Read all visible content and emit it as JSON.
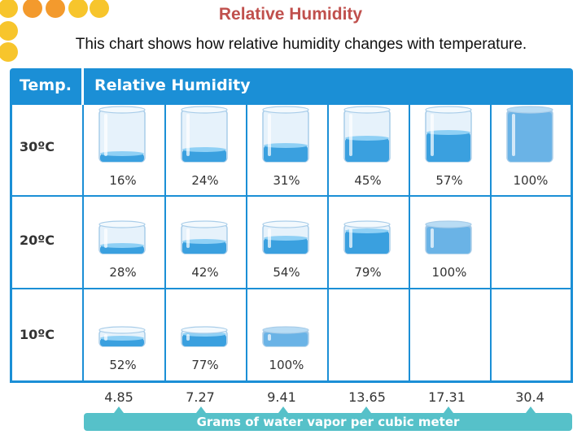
{
  "title": "Relative Humidity",
  "subtitle": "This chart shows how relative humidity changes with temperature.",
  "table": {
    "header_temp": "Temp.",
    "header_rh": "Relative Humidity",
    "rows": [
      {
        "temp": "30ºC",
        "cells": [
          {
            "label": "16%",
            "fill": 0.16,
            "size": 1.0
          },
          {
            "label": "24%",
            "fill": 0.24,
            "size": 1.0
          },
          {
            "label": "31%",
            "fill": 0.31,
            "size": 1.0
          },
          {
            "label": "45%",
            "fill": 0.45,
            "size": 1.0
          },
          {
            "label": "57%",
            "fill": 0.57,
            "size": 1.0
          },
          {
            "label": "100%",
            "fill": 1.0,
            "size": 1.0
          }
        ]
      },
      {
        "temp": "20ºC",
        "cells": [
          {
            "label": "28%",
            "fill": 0.28,
            "size": 0.56
          },
          {
            "label": "42%",
            "fill": 0.42,
            "size": 0.56
          },
          {
            "label": "54%",
            "fill": 0.54,
            "size": 0.56
          },
          {
            "label": "79%",
            "fill": 0.79,
            "size": 0.56
          },
          {
            "label": "100%",
            "fill": 1.0,
            "size": 0.56
          }
        ]
      },
      {
        "temp": "10ºC",
        "cells": [
          {
            "label": "52%",
            "fill": 0.52,
            "size": 0.31
          },
          {
            "label": "77%",
            "fill": 0.77,
            "size": 0.31
          },
          {
            "label": "100%",
            "fill": 1.0,
            "size": 0.31
          }
        ]
      }
    ]
  },
  "grams_values": [
    "4.85",
    "7.27",
    "9.41",
    "13.65",
    "17.31",
    "30.4"
  ],
  "axis_label": "Grams of water vapor per cubic meter",
  "colors": {
    "header_blue": "#1b8fd6",
    "axis_teal": "#56c1c9",
    "title_red": "#c0504d",
    "dot_yellow": "#f7c52c",
    "dot_orange": "#f39a2d"
  }
}
